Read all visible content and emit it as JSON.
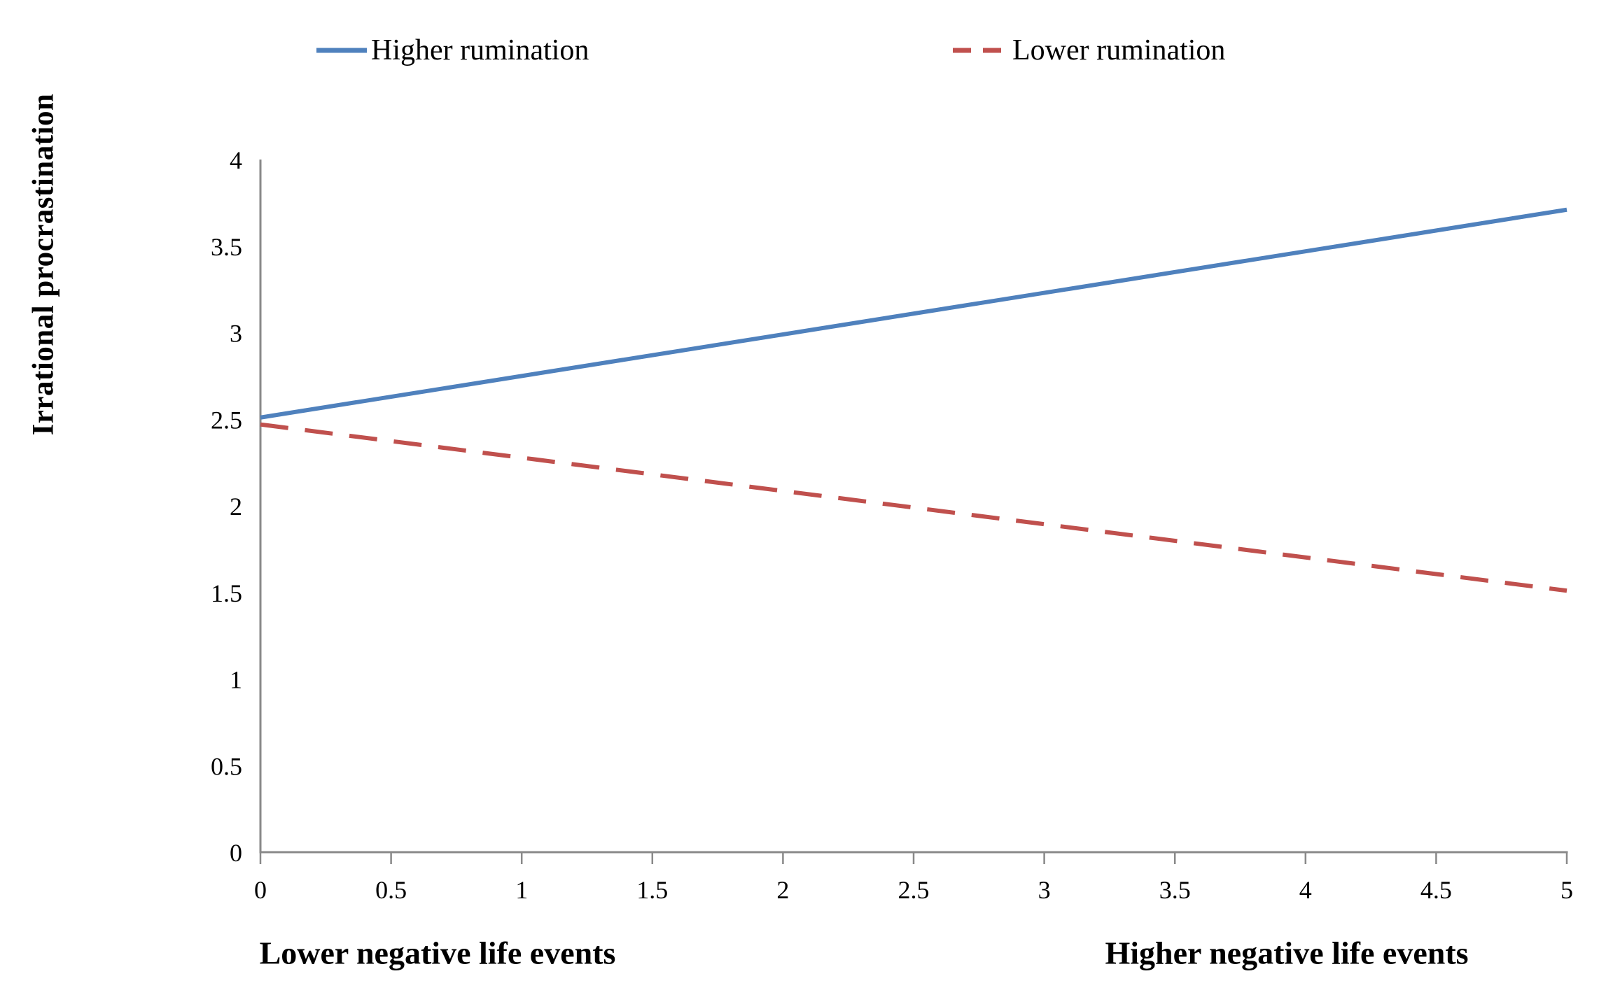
{
  "chart_data": {
    "type": "line",
    "x": [
      0,
      5
    ],
    "series": [
      {
        "name": "Higher rumination",
        "values": [
          2.51,
          3.71
        ],
        "color": "#4F81BD",
        "dash": "solid"
      },
      {
        "name": "Lower rumination",
        "values": [
          2.47,
          1.51
        ],
        "color": "#C0504D",
        "dash": "dashed"
      }
    ],
    "ylabel": "Irrational procrastination",
    "x_axis_labels": {
      "left": "Lower negative life events",
      "right": "Higher negative life events"
    },
    "xlim": [
      0,
      5
    ],
    "ylim": [
      0,
      4
    ],
    "x_ticks": [
      "0",
      "0.5",
      "1",
      "1.5",
      "2",
      "2.5",
      "3",
      "3.5",
      "4",
      "4.5",
      "5"
    ],
    "y_ticks": [
      "0",
      "0.5",
      "1",
      "1.5",
      "2",
      "2.5",
      "3",
      "3.5",
      "4"
    ],
    "grid": false,
    "legend_position": "top",
    "axis_color": "#898989"
  }
}
